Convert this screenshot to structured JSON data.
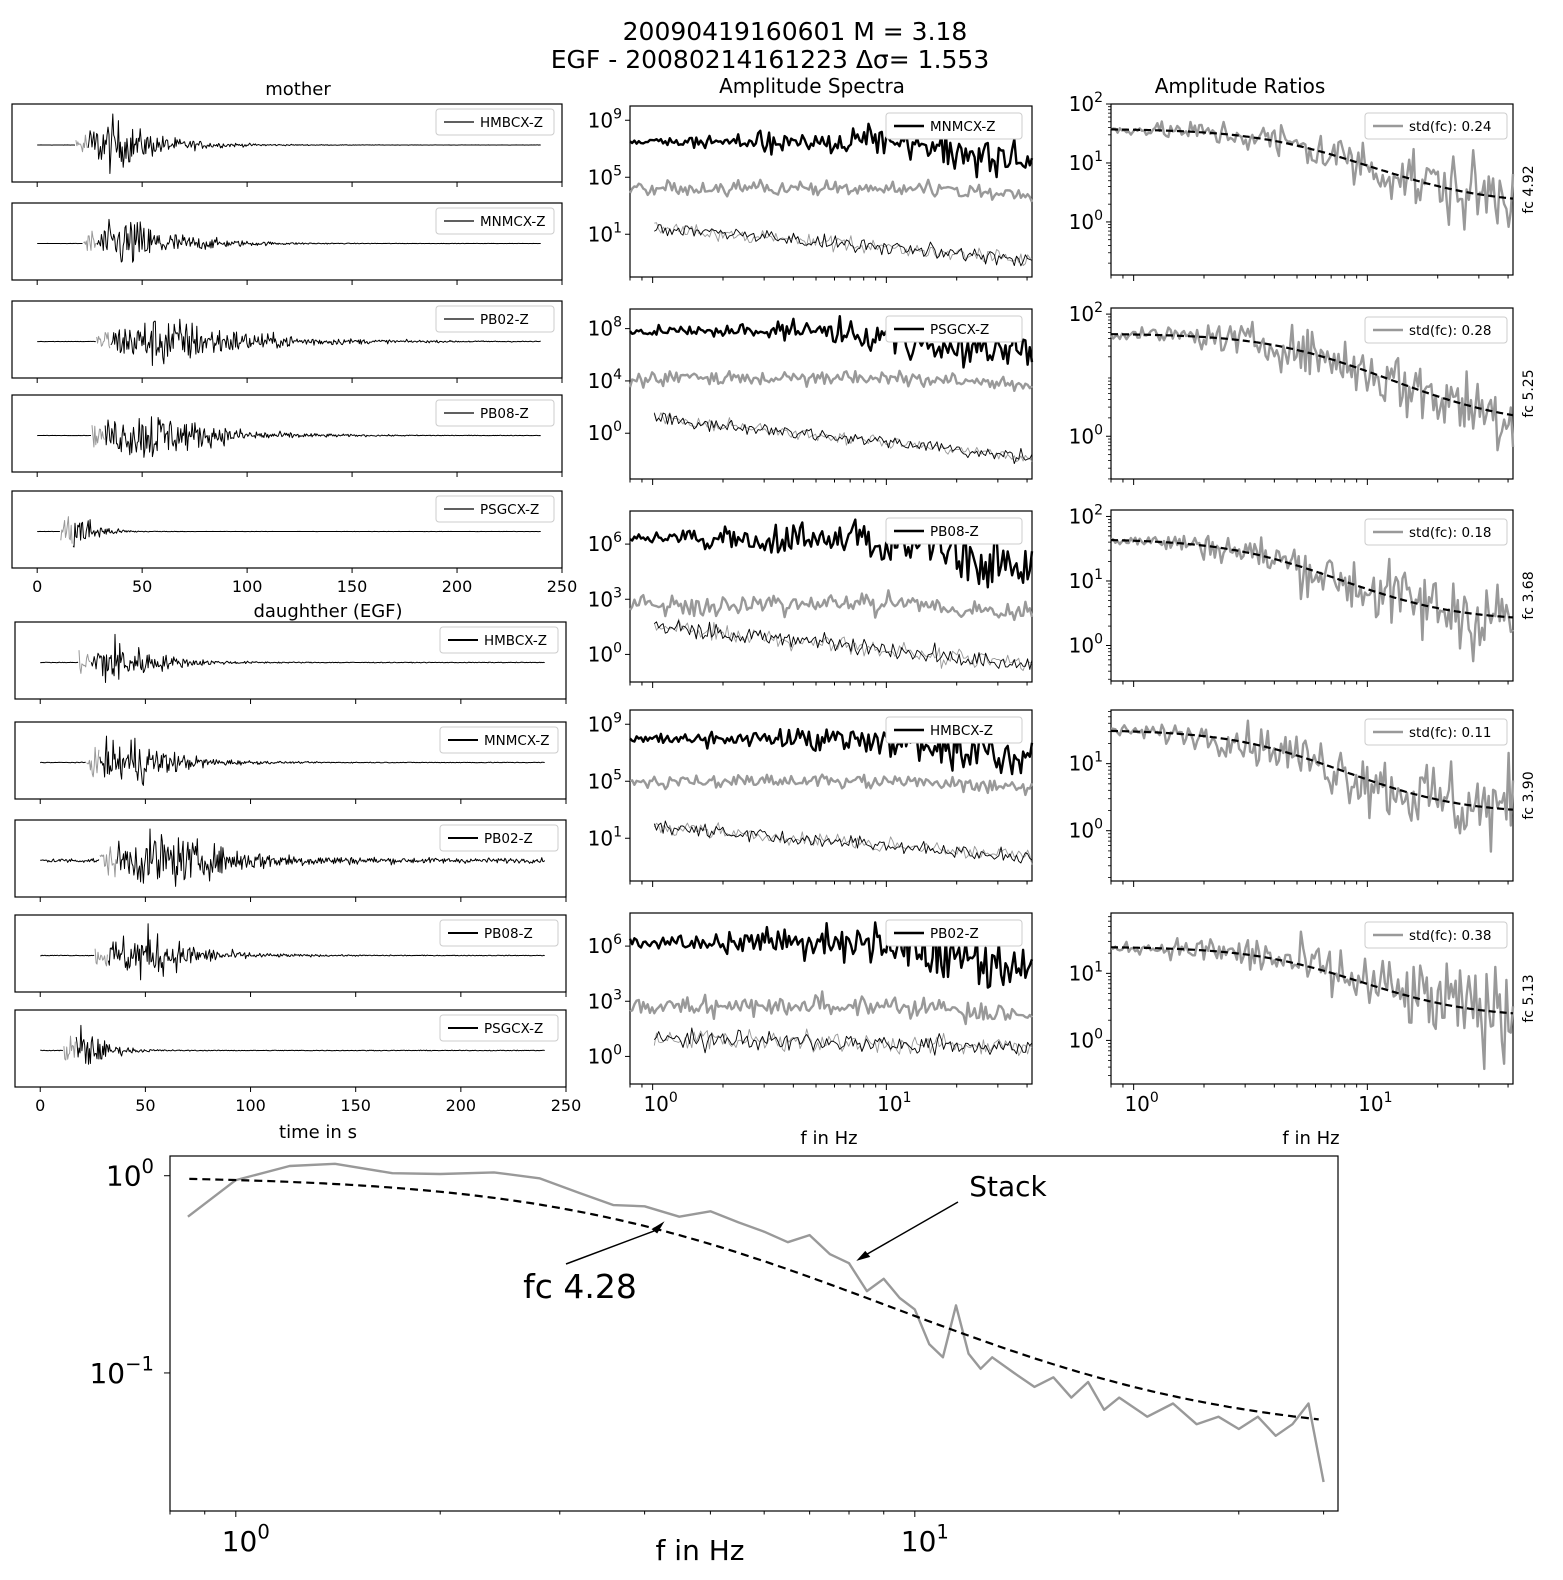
{
  "figure": {
    "title_line1": "20090419160601 M = 3.18",
    "title_line2": "EGF - 20080214161223   Δσ= 1.553",
    "mother_title": "mother",
    "daughter_title": "daughther (EGF)",
    "spectra_title": "Amplitude Spectra",
    "ratios_title": "Amplitude Ratios",
    "time_xlabel": "time in s",
    "freq_xlabel": "f in Hz",
    "stack_xlabel": "f in Hz",
    "stack_fc_label": "fc 4.28",
    "stack_arrow_label": "Stack"
  },
  "chart_data": [
    {
      "id": "mother_waveforms",
      "type": "line",
      "title": "mother",
      "xlabel": "",
      "xlim": [
        -12,
        250
      ],
      "xticks": [
        0,
        50,
        100,
        150,
        200,
        250
      ],
      "series": [
        {
          "name": "HMBCX-Z",
          "onset": 18,
          "ponset": 19,
          "peak": 35,
          "decay": 22,
          "noise": 0.003
        },
        {
          "name": "MNMCX-Z",
          "onset": 22,
          "ponset": 23,
          "peak": 43,
          "decay": 24,
          "noise": 0.003
        },
        {
          "name": "PB02-Z",
          "onset": 28,
          "ponset": 30,
          "peak": 60,
          "decay": 38,
          "noise": 0.006
        },
        {
          "name": "PB08-Z",
          "onset": 26,
          "ponset": 27,
          "peak": 53,
          "decay": 30,
          "noise": 0.004
        },
        {
          "name": "PSGCX-Z",
          "onset": 11,
          "ponset": 12,
          "peak": 19,
          "decay": 8,
          "noise": 0.003
        }
      ]
    },
    {
      "id": "daughter_waveforms",
      "type": "line",
      "title": "daughther (EGF)",
      "xlabel": "time in s",
      "xlim": [
        -12,
        250
      ],
      "xticks": [
        0,
        50,
        100,
        150,
        200,
        250
      ],
      "series": [
        {
          "name": "HMBCX-Z",
          "onset": 18,
          "ponset": 19,
          "peak": 35,
          "decay": 18,
          "noise": 0.012
        },
        {
          "name": "MNMCX-Z",
          "onset": 22,
          "ponset": 23,
          "peak": 43,
          "decay": 20,
          "noise": 0.012
        },
        {
          "name": "PB02-Z",
          "onset": 28,
          "ponset": 31,
          "peak": 58,
          "decay": 32,
          "noise": 0.08
        },
        {
          "name": "PB08-Z",
          "onset": 26,
          "ponset": 27,
          "peak": 50,
          "decay": 22,
          "noise": 0.012
        },
        {
          "name": "PSGCX-Z",
          "onset": 11,
          "ponset": 12,
          "peak": 19,
          "decay": 10,
          "noise": 0.012
        }
      ]
    },
    {
      "id": "amplitude_spectra",
      "type": "line",
      "title": "Amplitude Spectra",
      "xlabel": "f in Hz",
      "x_scale": "log",
      "xlim": [
        0.8,
        42
      ],
      "xtick_labels": [
        "10^0",
        "10^1"
      ],
      "y_scale": "log",
      "panels": [
        {
          "legend": "MNMCX-Z",
          "ylog_range": [
            -2,
            10
          ],
          "yticks": [
            1,
            5,
            9
          ],
          "mother_level": 7.5,
          "mother_fc": 9,
          "egf_level": 4.2,
          "egf_fc": 14,
          "noise_level": 1.5,
          "noise_hf": -0.8
        },
        {
          "legend": "PSGCX-Z",
          "ylog_range": [
            -3.5,
            9.5
          ],
          "yticks": [
            0,
            4,
            8
          ],
          "mother_level": 7.8,
          "mother_fc": 6,
          "egf_level": 4.2,
          "egf_fc": 12,
          "noise_level": 1.2,
          "noise_hf": -1.8
        },
        {
          "legend": "PB08-Z",
          "ylog_range": [
            -1.5,
            7.8
          ],
          "yticks": [
            0,
            3,
            6
          ],
          "mother_level": 6.3,
          "mother_fc": 8,
          "egf_level": 2.7,
          "egf_fc": 14,
          "noise_level": 1.6,
          "noise_hf": -0.6
        },
        {
          "legend": "HMBCX-Z",
          "ylog_range": [
            -2,
            10
          ],
          "yticks": [
            1,
            5,
            9
          ],
          "mother_level": 8.0,
          "mother_fc": 8,
          "egf_level": 5.0,
          "egf_fc": 14,
          "noise_level": 1.8,
          "noise_hf": -0.3
        },
        {
          "legend": "PB02-Z",
          "ylog_range": [
            -1.5,
            7.8
          ],
          "yticks": [
            0,
            3,
            6
          ],
          "mother_level": 6.2,
          "mother_fc": 8,
          "egf_level": 2.7,
          "egf_fc": 14,
          "noise_level": 1.0,
          "noise_hf": 0.5
        }
      ]
    },
    {
      "id": "amplitude_ratios",
      "type": "line",
      "title": "Amplitude Ratios",
      "xlabel": "f in Hz",
      "x_scale": "log",
      "xlim": [
        0.8,
        42
      ],
      "xtick_labels": [
        "10^0",
        "10^1"
      ],
      "y_scale": "log",
      "panels": [
        {
          "std_label": "std(fc): 0.24",
          "fc_label": "fc 4.92",
          "ylog_range": [
            -0.9,
            2
          ],
          "yticks": [
            0,
            1,
            2
          ],
          "omega0": 38,
          "fc": 4.92,
          "plateau_hf": 2.0
        },
        {
          "std_label": "std(fc): 0.28",
          "fc_label": "fc 5.25",
          "ylog_range": [
            -0.7,
            2.1
          ],
          "yticks": [
            0,
            2
          ],
          "omega0": 48,
          "fc": 5.25,
          "plateau_hf": 1.5
        },
        {
          "std_label": "std(fc): 0.18",
          "fc_label": "fc 3.68",
          "ylog_range": [
            -0.55,
            2.1
          ],
          "yticks": [
            0,
            1,
            2
          ],
          "omega0": 45,
          "fc": 3.68,
          "plateau_hf": 2.4
        },
        {
          "std_label": "std(fc): 0.11",
          "fc_label": "fc 3.90",
          "ylog_range": [
            -0.75,
            1.8
          ],
          "yticks": [
            0,
            1
          ],
          "omega0": 32,
          "fc": 3.9,
          "plateau_hf": 1.8
        },
        {
          "std_label": "std(fc): 0.38",
          "fc_label": "fc 5.13",
          "ylog_range": [
            -0.65,
            1.9
          ],
          "yticks": [
            0,
            1
          ],
          "omega0": 25,
          "fc": 5.13,
          "plateau_hf": 2.2
        }
      ]
    },
    {
      "id": "stack",
      "type": "line",
      "title": "",
      "xlabel": "f in Hz",
      "x_scale": "log",
      "xlim": [
        0.8,
        42
      ],
      "xtick_labels": [
        "10^0",
        "10^1"
      ],
      "y_scale": "log",
      "ylog_range": [
        -1.7,
        0.1
      ],
      "yticks": [
        0,
        -1
      ],
      "fc": 4.28,
      "plateau_hf": 0.047,
      "series": [
        {
          "name": "Stack",
          "x": [
            0.85,
            1.0,
            1.2,
            1.4,
            1.7,
            2.0,
            2.4,
            2.8,
            3.2,
            3.6,
            4.0,
            4.5,
            5.0,
            5.5,
            6.0,
            6.5,
            7.0,
            7.5,
            8.0,
            8.5,
            9.0,
            9.5,
            10.0,
            10.5,
            11.0,
            11.5,
            12.0,
            12.5,
            13.0,
            14.0,
            15.0,
            16.0,
            17.0,
            18.0,
            19.0,
            20.0,
            22.0,
            24.0,
            26.0,
            28.0,
            30.0,
            32.0,
            34.0,
            36.0,
            38.0,
            40.0
          ],
          "y": [
            0.62,
            0.95,
            1.12,
            1.15,
            1.03,
            1.02,
            1.04,
            0.97,
            0.82,
            0.71,
            0.7,
            0.62,
            0.66,
            0.58,
            0.52,
            0.46,
            0.5,
            0.4,
            0.36,
            0.26,
            0.3,
            0.24,
            0.21,
            0.14,
            0.12,
            0.22,
            0.125,
            0.105,
            0.12,
            0.1,
            0.085,
            0.095,
            0.075,
            0.09,
            0.065,
            0.075,
            0.06,
            0.07,
            0.055,
            0.06,
            0.052,
            0.06,
            0.048,
            0.055,
            0.07,
            0.028
          ]
        }
      ]
    }
  ],
  "colors": {
    "mother_trace": "#000000",
    "p_window": "#999999",
    "egf_spectrum": "#999999",
    "ratio_line": "#999999",
    "fit_line": "#000000"
  }
}
